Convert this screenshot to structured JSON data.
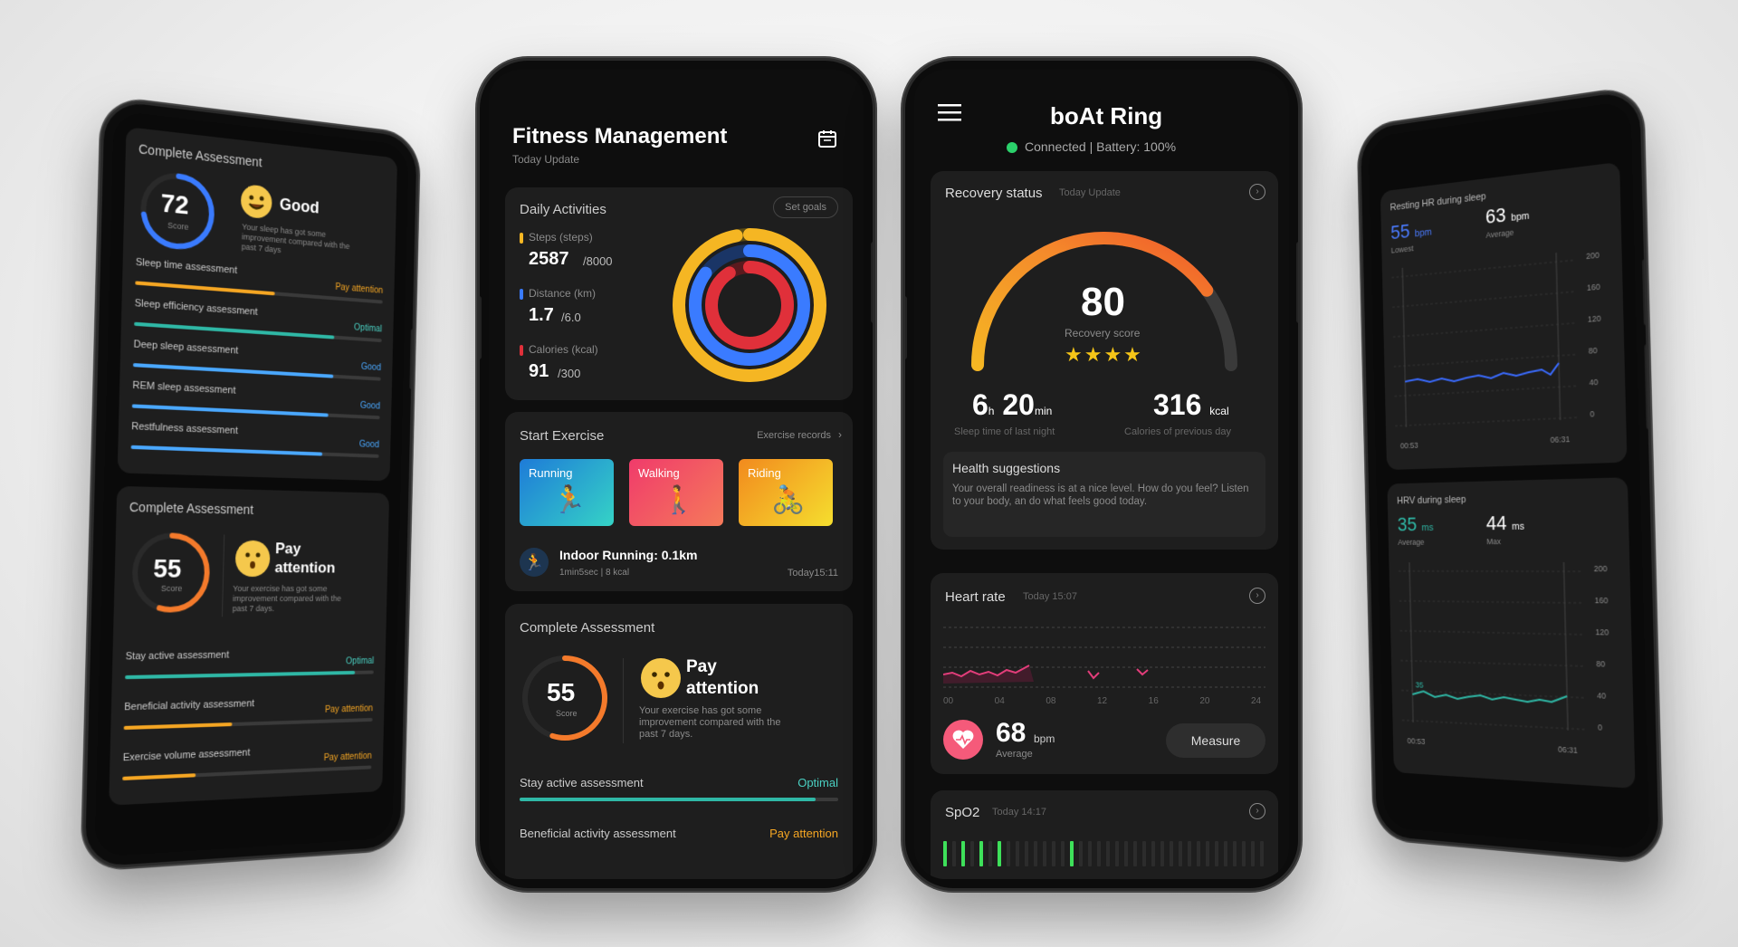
{
  "colors": {
    "blue": "#3a7bff",
    "orange": "#f47a2b",
    "green": "#2bd16b",
    "teal": "#2fb8a6",
    "yellow": "#f5b623",
    "pink": "#e23d7a",
    "good": "#4aa8ff",
    "optimal": "#4ad0c2",
    "attention": "#f5a623"
  },
  "phone1": {
    "assessment1": {
      "title": "Complete Assessment",
      "score": "72",
      "score_label": "Score",
      "status": "Good",
      "note": "Your sleep has got some improvement compared with the past 7 days",
      "rows": [
        {
          "label": "Sleep time assessment",
          "status": "Pay attention",
          "fill": 0.55
        },
        {
          "label": "Sleep efficiency assessment",
          "status": "Optimal",
          "fill": 0.8
        },
        {
          "label": "Deep sleep assessment",
          "status": "Good",
          "fill": 0.8
        },
        {
          "label": "REM sleep assessment",
          "status": "Good",
          "fill": 0.78
        },
        {
          "label": "Restfulness assessment",
          "status": "Good",
          "fill": 0.76
        }
      ]
    },
    "assessment2": {
      "title": "Complete Assessment",
      "score": "55",
      "score_label": "Score",
      "status": "Pay attention",
      "note": "Your exercise has got some improvement compared with the past 7 days.",
      "rows": [
        {
          "label": "Stay active assessment",
          "status": "Optimal",
          "fill": 0.92
        },
        {
          "label": "Beneficial activity assessment",
          "status": "Pay attention",
          "fill": 0.42
        },
        {
          "label": "Exercise volume assessment",
          "status": "Pay attention",
          "fill": 0.28
        }
      ]
    }
  },
  "phone2": {
    "title": "Fitness Management",
    "subtitle": "Today Update",
    "daily": {
      "title": "Daily Activities",
      "set_goals": "Set goals",
      "steps_label": "Steps (steps)",
      "steps_value": "2587",
      "steps_goal": "/8000",
      "distance_label": "Distance (km)",
      "distance_value": "1.7",
      "distance_goal": "/6.0",
      "calories_label": "Calories (kcal)",
      "calories_value": "91",
      "calories_goal": "/300",
      "steps_progress": 0.3234,
      "distance_progress": 0.2833,
      "calories_progress": 0.3033
    },
    "exercise": {
      "title": "Start Exercise",
      "records": "Exercise records",
      "tiles": [
        "Running",
        "Walking",
        "Riding"
      ],
      "last_title": "Indoor Running:  0.1km",
      "last_detail": "1min5sec | 8 kcal",
      "last_time": "Today15:11"
    },
    "assessment": {
      "title": "Complete Assessment",
      "score": "55",
      "score_label": "Score",
      "status": "Pay attention",
      "note": "Your exercise has got some improvement compared with the past 7 days.",
      "row1_label": "Stay active assessment",
      "row1_status": "Optimal",
      "row1_fill": 0.93,
      "row2_label": "Beneficial activity assessment",
      "row2_status": "Pay attention"
    }
  },
  "phone3": {
    "title": "boAt Ring",
    "connection": "Connected | Battery:  100%",
    "recovery": {
      "title": "Recovery status",
      "update": "Today Update",
      "score": "80",
      "score_label": "Recovery score",
      "stars": "★★★★",
      "sleep_h": "6",
      "sleep_h_unit": "h",
      "sleep_m": "20",
      "sleep_m_unit": "min",
      "sleep_label": "Sleep time of last night",
      "cal_value": "316",
      "cal_unit": "kcal",
      "cal_label": "Calories of previous day",
      "suggest_title": "Health suggestions",
      "suggest_text": "Your overall readiness is at a nice level. How do you feel? Listen to your body, an do what feels good today.",
      "gauge_fraction": 0.8
    },
    "heart": {
      "title": "Heart rate",
      "time": "Today 15:07",
      "axis": [
        "00",
        "04",
        "08",
        "12",
        "16",
        "20",
        "24"
      ],
      "value": "68",
      "unit": "bpm",
      "value_label": "Average",
      "measure": "Measure"
    },
    "spo2": {
      "title": "SpO2",
      "time": "Today 14:17"
    }
  },
  "phone4": {
    "rhr": {
      "title": "Resting HR during sleep",
      "low_value": "55",
      "low_unit": "bpm",
      "low_label": "Lowest",
      "avg_value": "63",
      "avg_unit": "bpm",
      "avg_label": "Average",
      "y_ticks": [
        "200",
        "160",
        "120",
        "80",
        "40",
        "0"
      ],
      "x_start": "00:53",
      "x_end": "06:31"
    },
    "hrv": {
      "title": "HRV during sleep",
      "avg_value": "35",
      "avg_unit": "ms",
      "avg_label": "Average",
      "max_value": "44",
      "max_unit": "ms",
      "max_label": "Max",
      "marker": "35",
      "y_ticks": [
        "200",
        "160",
        "120",
        "80",
        "40",
        "0"
      ],
      "x_start": "00:53",
      "x_end": "06:31"
    }
  }
}
